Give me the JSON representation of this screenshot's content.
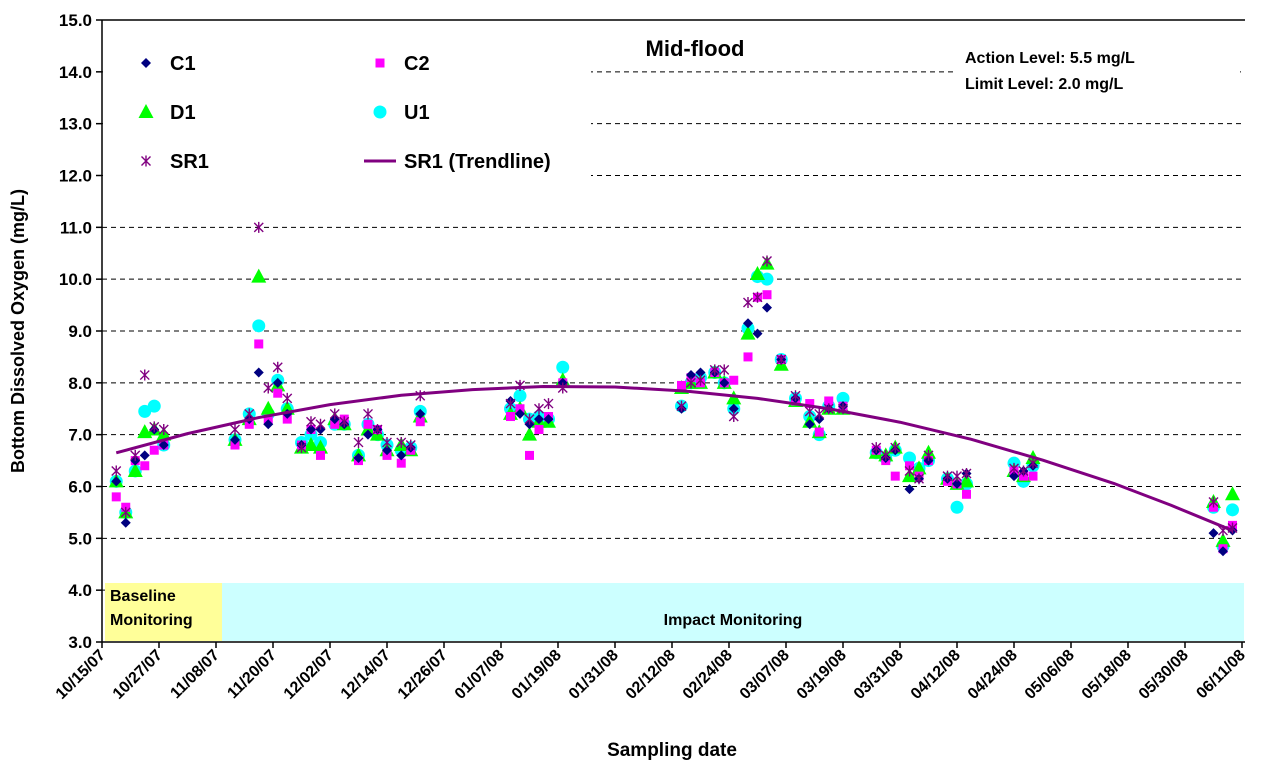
{
  "chart_data": {
    "type": "scatter",
    "title": "Mid-flood",
    "x_label": "Sampling date",
    "y_label": "Bottom Dissolved Oxygen (mg/L)",
    "notes": [
      "Action Level: 5.5 mg/L",
      "Limit Level: 2.0 mg/L"
    ],
    "phases": [
      "Baseline Monitoring",
      "Impact Monitoring"
    ],
    "grid": true,
    "legend": "upper left",
    "xlim": [
      39370,
      39610
    ],
    "xticks": [
      {
        "value": 39370,
        "label": "10/15/07"
      },
      {
        "value": 39382,
        "label": "10/27/07"
      },
      {
        "value": 39394,
        "label": "11/08/07"
      },
      {
        "value": 39406,
        "label": "11/20/07"
      },
      {
        "value": 39418,
        "label": "12/02/07"
      },
      {
        "value": 39430,
        "label": "12/14/07"
      },
      {
        "value": 39442,
        "label": "12/26/07"
      },
      {
        "value": 39454,
        "label": "01/07/08"
      },
      {
        "value": 39466,
        "label": "01/19/08"
      },
      {
        "value": 39478,
        "label": "01/31/08"
      },
      {
        "value": 39490,
        "label": "02/12/08"
      },
      {
        "value": 39502,
        "label": "02/24/08"
      },
      {
        "value": 39514,
        "label": "03/07/08"
      },
      {
        "value": 39526,
        "label": "03/19/08"
      },
      {
        "value": 39538,
        "label": "03/31/08"
      },
      {
        "value": 39550,
        "label": "04/12/08"
      },
      {
        "value": 39562,
        "label": "04/24/08"
      },
      {
        "value": 39574,
        "label": "05/06/08"
      },
      {
        "value": 39586,
        "label": "05/18/08"
      },
      {
        "value": 39598,
        "label": "05/30/08"
      },
      {
        "value": 39610,
        "label": "06/11/08"
      }
    ],
    "ylim": [
      3,
      15
    ],
    "yticks": [
      {
        "value": 3,
        "label": "3.0"
      },
      {
        "value": 4,
        "label": "4.0"
      },
      {
        "value": 5,
        "label": "5.0"
      },
      {
        "value": 6,
        "label": "6.0"
      },
      {
        "value": 7,
        "label": "7.0"
      },
      {
        "value": 8,
        "label": "8.0"
      },
      {
        "value": 9,
        "label": "9.0"
      },
      {
        "value": 10,
        "label": "10.0"
      },
      {
        "value": 11,
        "label": "11.0"
      },
      {
        "value": 12,
        "label": "12.0"
      },
      {
        "value": 13,
        "label": "13.0"
      },
      {
        "value": 14,
        "label": "14.0"
      },
      {
        "value": 15,
        "label": "15.0"
      }
    ],
    "series": [
      {
        "name": "C1",
        "color": "#000080",
        "marker": "diamond",
        "x": [
          39373,
          39375,
          39377,
          39379,
          39381,
          39383,
          39398,
          39401,
          39403,
          39405,
          39407,
          39409,
          39412,
          39414,
          39416,
          39419,
          39421,
          39424,
          39426,
          39428,
          39430,
          39433,
          39435,
          39437,
          39456,
          39458,
          39460,
          39462,
          39464,
          39467,
          39492,
          39494,
          39496,
          39499,
          39501,
          39503,
          39506,
          39508,
          39510,
          39513,
          39516,
          39519,
          39521,
          39523,
          39526,
          39533,
          39535,
          39537,
          39540,
          39542,
          39544,
          39548,
          39550,
          39552,
          39562,
          39564,
          39566,
          39604,
          39606,
          39608
        ],
        "values": [
          6.1,
          5.3,
          6.5,
          6.6,
          7.1,
          6.8,
          6.9,
          7.3,
          8.2,
          7.2,
          8.0,
          7.4,
          6.8,
          7.1,
          7.1,
          7.3,
          7.2,
          6.55,
          7.0,
          7.1,
          6.7,
          6.6,
          6.75,
          7.4,
          7.65,
          7.4,
          7.2,
          7.3,
          7.3,
          8.0,
          7.5,
          8.15,
          8.2,
          8.2,
          8.0,
          7.5,
          9.15,
          8.95,
          9.45,
          8.45,
          7.7,
          7.2,
          7.3,
          7.5,
          7.55,
          6.7,
          6.55,
          6.7,
          5.95,
          6.15,
          6.5,
          6.15,
          6.05,
          6.25,
          6.2,
          6.3,
          6.4,
          5.1,
          4.75,
          5.15
        ]
      },
      {
        "name": "C2",
        "color": "#FF00FF",
        "marker": "square",
        "x": [
          39373,
          39375,
          39377,
          39379,
          39381,
          39383,
          39398,
          39401,
          39403,
          39405,
          39407,
          39409,
          39412,
          39414,
          39416,
          39419,
          39421,
          39424,
          39426,
          39428,
          39430,
          39433,
          39435,
          39437,
          39456,
          39458,
          39460,
          39462,
          39464,
          39467,
          39492,
          39494,
          39496,
          39499,
          39501,
          39503,
          39506,
          39508,
          39510,
          39513,
          39516,
          39519,
          39521,
          39523,
          39526,
          39533,
          39535,
          39537,
          39540,
          39542,
          39544,
          39548,
          39550,
          39552,
          39562,
          39564,
          39566,
          39604,
          39606,
          39608
        ],
        "values": [
          5.8,
          5.6,
          6.5,
          6.4,
          6.7,
          6.8,
          6.8,
          7.2,
          8.75,
          7.3,
          7.8,
          7.3,
          6.8,
          7.1,
          6.6,
          7.2,
          7.3,
          6.5,
          7.2,
          7.1,
          6.6,
          6.45,
          6.7,
          7.25,
          7.35,
          7.5,
          6.6,
          7.1,
          7.35,
          8.0,
          7.95,
          8.1,
          8.0,
          8.2,
          8.0,
          8.05,
          8.5,
          9.65,
          9.7,
          8.45,
          7.65,
          7.6,
          7.05,
          7.65,
          7.55,
          6.7,
          6.5,
          6.2,
          6.4,
          6.2,
          6.5,
          6.1,
          6.05,
          5.85,
          6.3,
          6.2,
          6.2,
          5.6,
          4.8,
          5.25
        ]
      },
      {
        "name": "D1",
        "color": "#00FF00",
        "marker": "triangle",
        "x": [
          39373,
          39375,
          39377,
          39379,
          39381,
          39383,
          39398,
          39401,
          39403,
          39405,
          39407,
          39409,
          39412,
          39414,
          39416,
          39419,
          39421,
          39424,
          39426,
          39428,
          39430,
          39433,
          39435,
          39437,
          39456,
          39458,
          39460,
          39462,
          39464,
          39467,
          39492,
          39494,
          39496,
          39499,
          39501,
          39503,
          39506,
          39508,
          39510,
          39513,
          39516,
          39519,
          39521,
          39523,
          39526,
          39533,
          39535,
          39537,
          39540,
          39542,
          39544,
          39548,
          39550,
          39552,
          39562,
          39564,
          39566,
          39604,
          39606,
          39608
        ],
        "values": [
          6.1,
          5.5,
          6.3,
          7.05,
          7.1,
          7.0,
          6.9,
          7.3,
          10.05,
          7.5,
          7.95,
          7.5,
          6.75,
          6.8,
          6.75,
          7.3,
          7.2,
          6.6,
          7.1,
          7.0,
          6.7,
          6.8,
          6.7,
          7.35,
          7.4,
          7.5,
          7.0,
          7.25,
          7.25,
          8.05,
          7.9,
          8.0,
          8.0,
          8.2,
          8.0,
          7.7,
          8.95,
          10.1,
          10.3,
          8.35,
          7.65,
          7.25,
          7.05,
          7.5,
          7.5,
          6.65,
          6.6,
          6.75,
          6.2,
          6.35,
          6.65,
          6.15,
          6.05,
          6.1,
          6.3,
          6.2,
          6.55,
          5.7,
          4.95,
          5.85
        ]
      },
      {
        "name": "U1",
        "color": "#00FFFF",
        "marker": "circle",
        "x": [
          39373,
          39375,
          39377,
          39379,
          39381,
          39383,
          39398,
          39401,
          39403,
          39405,
          39407,
          39409,
          39412,
          39414,
          39416,
          39419,
          39421,
          39424,
          39426,
          39428,
          39430,
          39433,
          39435,
          39437,
          39456,
          39458,
          39460,
          39462,
          39464,
          39467,
          39492,
          39494,
          39496,
          39499,
          39501,
          39503,
          39506,
          39508,
          39510,
          39513,
          39516,
          39519,
          39521,
          39523,
          39526,
          39533,
          39535,
          39537,
          39540,
          39542,
          39544,
          39548,
          39550,
          39552,
          39562,
          39564,
          39566,
          39604,
          39606,
          39608
        ],
        "values": [
          6.1,
          5.5,
          6.3,
          7.45,
          7.55,
          6.8,
          6.9,
          7.4,
          9.1,
          7.4,
          8.05,
          7.5,
          6.85,
          7.0,
          6.85,
          7.2,
          7.2,
          6.6,
          7.2,
          7.0,
          6.8,
          6.7,
          6.75,
          7.45,
          7.5,
          7.75,
          7.3,
          7.35,
          7.3,
          8.3,
          7.55,
          8.0,
          8.1,
          8.2,
          8.0,
          7.5,
          9.05,
          10.05,
          10.0,
          8.45,
          7.7,
          7.35,
          7.0,
          7.55,
          7.7,
          6.65,
          6.55,
          6.7,
          6.55,
          6.35,
          6.5,
          6.15,
          5.6,
          6.05,
          6.45,
          6.1,
          6.4,
          5.6,
          4.85,
          5.55
        ]
      },
      {
        "name": "SR1",
        "color": "#800080",
        "marker": "asterisk",
        "x": [
          39373,
          39375,
          39377,
          39379,
          39381,
          39383,
          39398,
          39401,
          39403,
          39405,
          39407,
          39409,
          39412,
          39414,
          39416,
          39419,
          39421,
          39424,
          39426,
          39428,
          39430,
          39433,
          39435,
          39437,
          39456,
          39458,
          39460,
          39462,
          39464,
          39467,
          39492,
          39494,
          39496,
          39499,
          39501,
          39503,
          39506,
          39508,
          39510,
          39513,
          39516,
          39519,
          39521,
          39523,
          39526,
          39533,
          39535,
          39537,
          39540,
          39542,
          39544,
          39548,
          39550,
          39552,
          39562,
          39564,
          39566,
          39604,
          39606,
          39608
        ],
        "values": [
          6.3,
          5.5,
          6.6,
          8.15,
          7.15,
          7.1,
          7.1,
          7.4,
          11.0,
          7.9,
          8.3,
          7.7,
          6.75,
          7.25,
          7.2,
          7.4,
          7.25,
          6.85,
          7.4,
          7.1,
          6.85,
          6.85,
          6.8,
          7.75,
          7.6,
          7.95,
          7.3,
          7.5,
          7.6,
          7.9,
          7.55,
          8.0,
          8.05,
          8.25,
          8.25,
          7.35,
          9.55,
          9.65,
          10.35,
          8.45,
          7.75,
          7.45,
          7.4,
          7.5,
          7.5,
          6.75,
          6.6,
          6.75,
          6.3,
          6.15,
          6.6,
          6.2,
          6.2,
          6.25,
          6.35,
          6.3,
          6.45,
          5.7,
          5.15,
          5.2
        ]
      },
      {
        "name": "SR1 (Trendline)",
        "color": "#800080",
        "marker": "line",
        "x": [
          39373,
          39388,
          39403,
          39418,
          39433,
          39448,
          39463,
          39478,
          39493,
          39508,
          39523,
          39538,
          39553,
          39568,
          39583,
          39595,
          39608
        ],
        "values": [
          6.65,
          7.02,
          7.33,
          7.58,
          7.76,
          7.87,
          7.93,
          7.92,
          7.84,
          7.7,
          7.5,
          7.24,
          6.91,
          6.51,
          6.06,
          5.64,
          5.15
        ]
      }
    ]
  }
}
